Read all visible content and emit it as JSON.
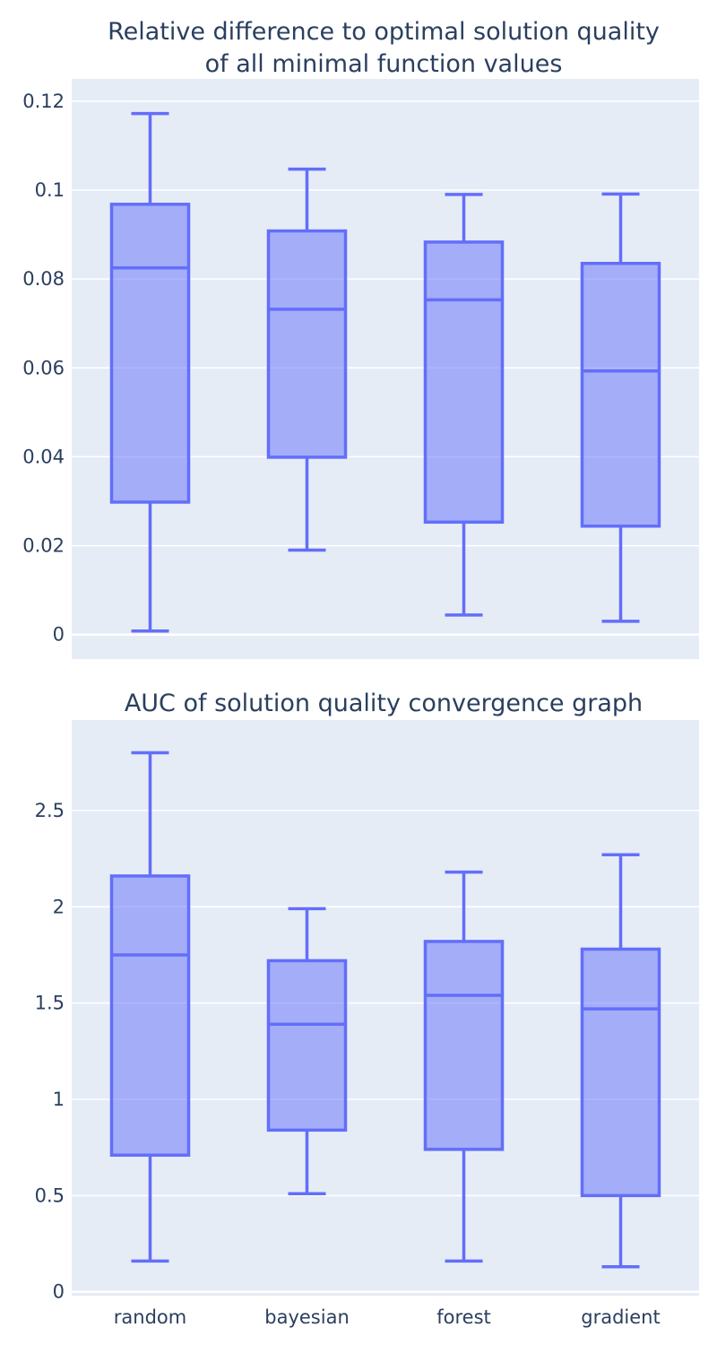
{
  "colors": {
    "plot_bg": "#e5ecf6",
    "grid": "#ffffff",
    "box_line": "#636efa",
    "box_fill": "rgba(99,110,250,0.5)",
    "text": "#2a3f5f"
  },
  "chart_data": [
    {
      "type": "box",
      "title_lines": [
        "Relative difference to optimal solution quality",
        "of all minimal function values"
      ],
      "categories": [
        "random",
        "bayesian",
        "forest",
        "gradient"
      ],
      "ylim": [
        -0.0055,
        0.125
      ],
      "yticks": [
        0,
        0.02,
        0.04,
        0.06,
        0.08,
        0.1,
        0.12
      ],
      "ytick_labels": [
        "0",
        "0.02",
        "0.04",
        "0.06",
        "0.08",
        "0.1",
        "0.12"
      ],
      "grid": true,
      "show_x_labels": false,
      "boxes": [
        {
          "min": 0.0008,
          "q1": 0.0298,
          "median": 0.0825,
          "q3": 0.0968,
          "max": 0.1172
        },
        {
          "min": 0.019,
          "q1": 0.0399,
          "median": 0.0732,
          "q3": 0.0908,
          "max": 0.1047
        },
        {
          "min": 0.0044,
          "q1": 0.0253,
          "median": 0.0753,
          "q3": 0.0883,
          "max": 0.099
        },
        {
          "min": 0.003,
          "q1": 0.0244,
          "median": 0.0593,
          "q3": 0.0835,
          "max": 0.0991
        }
      ]
    },
    {
      "type": "box",
      "title_lines": [
        "AUC of solution quality convergence graph"
      ],
      "categories": [
        "random",
        "bayesian",
        "forest",
        "gradient"
      ],
      "ylim": [
        -0.02,
        2.97
      ],
      "yticks": [
        0,
        0.5,
        1,
        1.5,
        2,
        2.5
      ],
      "ytick_labels": [
        "0",
        "0.5",
        "1",
        "1.5",
        "2",
        "2.5"
      ],
      "grid": true,
      "show_x_labels": true,
      "boxes": [
        {
          "min": 0.16,
          "q1": 0.71,
          "median": 1.75,
          "q3": 2.16,
          "max": 2.8
        },
        {
          "min": 0.51,
          "q1": 0.84,
          "median": 1.39,
          "q3": 1.72,
          "max": 1.99
        },
        {
          "min": 0.16,
          "q1": 0.74,
          "median": 1.54,
          "q3": 1.82,
          "max": 2.18
        },
        {
          "min": 0.13,
          "q1": 0.5,
          "median": 1.47,
          "q3": 1.78,
          "max": 2.27
        }
      ]
    }
  ]
}
